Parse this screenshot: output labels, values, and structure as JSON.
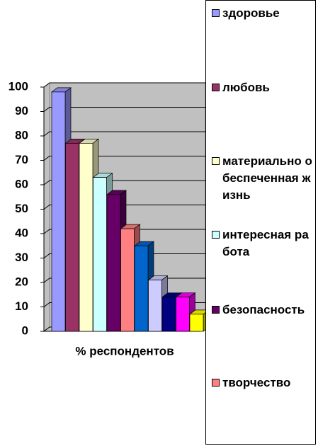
{
  "chart_data": {
    "type": "bar3d",
    "categories": [
      "% респондентов"
    ],
    "series": [
      {
        "name": "здоровье",
        "color": "#9999ff",
        "values": [
          98
        ]
      },
      {
        "name": "любовь",
        "color": "#993366",
        "values": [
          77
        ]
      },
      {
        "name": "материально обеспеченная жизнь",
        "color": "#ffffcc",
        "values": [
          77
        ]
      },
      {
        "name": "интересная работа",
        "color": "#ccffff",
        "values": [
          63
        ]
      },
      {
        "name": "безопасность",
        "color": "#660066",
        "values": [
          56
        ]
      },
      {
        "name": "творчество",
        "color": "#ff8080",
        "values": [
          42
        ]
      },
      {
        "name": null,
        "color": "#0066cc",
        "values": [
          35
        ]
      },
      {
        "name": null,
        "color": "#ccccff",
        "values": [
          21
        ]
      },
      {
        "name": null,
        "color": "#000080",
        "values": [
          14
        ]
      },
      {
        "name": null,
        "color": "#ff00ff",
        "values": [
          14
        ]
      },
      {
        "name": null,
        "color": "#ffff00",
        "values": [
          7
        ]
      }
    ],
    "ylim": [
      0,
      100
    ],
    "yticks": [
      0,
      10,
      20,
      30,
      40,
      50,
      60,
      70,
      80,
      90,
      100
    ],
    "grid": true,
    "legend": "right"
  }
}
